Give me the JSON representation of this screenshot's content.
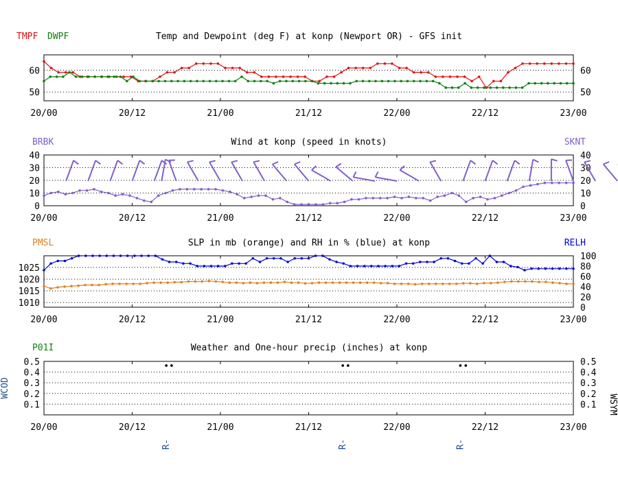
{
  "time_ticks": [
    "20/00",
    "20/12",
    "21/00",
    "21/12",
    "22/00",
    "22/12",
    "23/00"
  ],
  "colors": {
    "temp": "#e01010",
    "dewp": "#108010",
    "wind": "#8060c8",
    "pmsl": "#e08020",
    "relh": "#0000e0",
    "p01i": "#108010",
    "wcod": "#205090"
  },
  "chart_data": [
    {
      "type": "line",
      "title": "Temp and Dewpoint (deg F) at konp  (Newport OR) - GFS init",
      "left_label_1": "TMPF",
      "left_label_2": "DWPF",
      "ylim": [
        46,
        67
      ],
      "yticks": [
        50,
        60
      ],
      "grid": true,
      "series": [
        {
          "name": "TMPF",
          "values": [
            64,
            61,
            59,
            59,
            59,
            57,
            57,
            57,
            57,
            57,
            57,
            57,
            57,
            55,
            55,
            55,
            57,
            59,
            59,
            61,
            61,
            63,
            63,
            63,
            63,
            61,
            61,
            61,
            59,
            59,
            57,
            57,
            57,
            57,
            57,
            57,
            57,
            55,
            55,
            57,
            57,
            59,
            61,
            61,
            61,
            61,
            63,
            63,
            63,
            61,
            61,
            59,
            59,
            59,
            57,
            57,
            57,
            57,
            57,
            55,
            57,
            52,
            55,
            55,
            59,
            61,
            63,
            63,
            63,
            63,
            63,
            63,
            63,
            63
          ]
        },
        {
          "name": "DWPF",
          "values": [
            55,
            57,
            57,
            57,
            59,
            57,
            57,
            57,
            57,
            57,
            57,
            57,
            57,
            55,
            57,
            55,
            55,
            55,
            55,
            55,
            55,
            55,
            55,
            55,
            55,
            55,
            55,
            55,
            55,
            55,
            55,
            57,
            55,
            55,
            55,
            55,
            54,
            55,
            55,
            55,
            55,
            55,
            55,
            54,
            54,
            54,
            54,
            54,
            54,
            55,
            55,
            55,
            55,
            55,
            55,
            55,
            55,
            55,
            55,
            55,
            55,
            55,
            54,
            52,
            52,
            52,
            54,
            52,
            52,
            52,
            52,
            52,
            52,
            52,
            52,
            52,
            54,
            54,
            54,
            54,
            54,
            54,
            54,
            54
          ]
        }
      ]
    },
    {
      "type": "line",
      "title": "Wind at  konp  (speed in knots)",
      "left_label": "BRBK",
      "right_label": "SKNT",
      "ylim": [
        0,
        40
      ],
      "yticks": [
        0,
        10,
        20,
        30,
        40
      ],
      "grid": true,
      "series": [
        {
          "name": "SKNT",
          "values": [
            8,
            10,
            11,
            9,
            10,
            12,
            12,
            13,
            11,
            10,
            8,
            9,
            8,
            6,
            4,
            3,
            8,
            10,
            12,
            13,
            13,
            13,
            13,
            13,
            13,
            12,
            11,
            9,
            6,
            7,
            8,
            8,
            5,
            6,
            3,
            1,
            1,
            1,
            1,
            1,
            2,
            2,
            3,
            5,
            5,
            6,
            6,
            6,
            6,
            7,
            6,
            7,
            6,
            6,
            4,
            7,
            8,
            10,
            8,
            3,
            6,
            7,
            5,
            6,
            8,
            10,
            12,
            15,
            16,
            17,
            18,
            18,
            18,
            18,
            18
          ]
        },
        {
          "name": "BRBK",
          "barbs": [
            {
              "t": 3,
              "speed": 15,
              "dir": 20
            },
            {
              "t": 6,
              "speed": 15,
              "dir": 20
            },
            {
              "t": 9,
              "speed": 15,
              "dir": 20
            },
            {
              "t": 12,
              "speed": 15,
              "dir": 20
            },
            {
              "t": 15,
              "speed": 15,
              "dir": 20
            },
            {
              "t": 16,
              "speed": 15,
              "dir": 10
            },
            {
              "t": 18,
              "speed": 15,
              "dir": 340
            },
            {
              "t": 21,
              "speed": 15,
              "dir": 330
            },
            {
              "t": 24,
              "speed": 15,
              "dir": 330
            },
            {
              "t": 27,
              "speed": 15,
              "dir": 330
            },
            {
              "t": 30,
              "speed": 15,
              "dir": 330
            },
            {
              "t": 33,
              "speed": 15,
              "dir": 320
            },
            {
              "t": 36,
              "speed": 15,
              "dir": 320
            },
            {
              "t": 39,
              "speed": 10,
              "dir": 300
            },
            {
              "t": 42,
              "speed": 10,
              "dir": 310
            },
            {
              "t": 45,
              "speed": 10,
              "dir": 280
            },
            {
              "t": 48,
              "speed": 10,
              "dir": 280
            },
            {
              "t": 51,
              "speed": 10,
              "dir": 300
            },
            {
              "t": 54,
              "speed": 15,
              "dir": 330
            },
            {
              "t": 57,
              "speed": 15,
              "dir": 20
            },
            {
              "t": 60,
              "speed": 15,
              "dir": 20
            },
            {
              "t": 63,
              "speed": 15,
              "dir": 20
            },
            {
              "t": 66,
              "speed": 15,
              "dir": 10
            },
            {
              "t": 69,
              "speed": 15,
              "dir": 0
            },
            {
              "t": 72,
              "speed": 15,
              "dir": 340
            },
            {
              "t": 75,
              "speed": 15,
              "dir": 330
            },
            {
              "t": 78,
              "speed": 15,
              "dir": 320
            },
            {
              "t": 80,
              "speed": 15,
              "dir": 320
            }
          ]
        }
      ]
    },
    {
      "type": "line",
      "title": "SLP in mb (orange) and RH in % (blue) at  konp",
      "left_label": "PMSL",
      "right_label": "RELH",
      "ylim_left": [
        1008,
        1030
      ],
      "yticks_left": [
        1010,
        1015,
        1020,
        1025
      ],
      "ylim_right": [
        0,
        100
      ],
      "yticks_right": [
        0,
        20,
        40,
        60,
        80,
        100
      ],
      "grid": true,
      "series": [
        {
          "name": "PMSL",
          "axis": "left",
          "values": [
            1017,
            1016,
            1016.5,
            1016.8,
            1017,
            1017.2,
            1017.5,
            1017.5,
            1017.5,
            1017.8,
            1018,
            1018,
            1018,
            1018,
            1018,
            1018.3,
            1018.5,
            1018.5,
            1018.5,
            1018.7,
            1018.7,
            1019,
            1019,
            1019,
            1019.2,
            1019,
            1018.8,
            1018.5,
            1018.5,
            1018.3,
            1018.5,
            1018.3,
            1018.5,
            1018.5,
            1018.5,
            1018.8,
            1018.5,
            1018.5,
            1018.2,
            1018.3,
            1018.5,
            1018.5,
            1018.5,
            1018.5,
            1018.5,
            1018.5,
            1018.5,
            1018.5,
            1018.5,
            1018.3,
            1018.3,
            1018,
            1018,
            1018,
            1017.8,
            1018,
            1018,
            1018,
            1018,
            1018,
            1018,
            1018.2,
            1018.2,
            1018,
            1018.3,
            1018.3,
            1018.5,
            1018.8,
            1019,
            1019,
            1019,
            1019,
            1018.8,
            1018.8,
            1018.5,
            1018.3,
            1018,
            1018
          ]
        },
        {
          "name": "RELH",
          "axis": "right",
          "values": [
            72,
            85,
            90,
            90,
            95,
            100,
            100,
            100,
            100,
            100,
            100,
            100,
            100,
            100,
            100,
            100,
            100,
            93,
            88,
            88,
            85,
            85,
            80,
            80,
            80,
            80,
            80,
            85,
            85,
            85,
            95,
            88,
            95,
            95,
            95,
            88,
            95,
            95,
            95,
            100,
            100,
            93,
            88,
            85,
            80,
            80,
            80,
            80,
            80,
            80,
            80,
            80,
            85,
            85,
            88,
            88,
            88,
            95,
            95,
            90,
            85,
            85,
            95,
            85,
            100,
            88,
            88,
            80,
            78,
            72,
            75,
            75,
            75,
            75,
            75,
            75,
            75
          ]
        }
      ]
    },
    {
      "type": "scatter",
      "title": "Weather and One-hour precip (inches) at  konp",
      "left_label": "P01I",
      "left_axis_label": "WCOD",
      "right_axis_label": "WSYM",
      "ylim": [
        0,
        0.5
      ],
      "yticks": [
        0.1,
        0.2,
        0.3,
        0.4,
        0.5
      ],
      "grid": true,
      "weather_marks": [
        {
          "t": 17,
          "symbol": "••",
          "code": "R-"
        },
        {
          "t": 41,
          "symbol": "••",
          "code": "R-"
        },
        {
          "t": 57,
          "symbol": "••",
          "code": "R-"
        }
      ]
    }
  ]
}
